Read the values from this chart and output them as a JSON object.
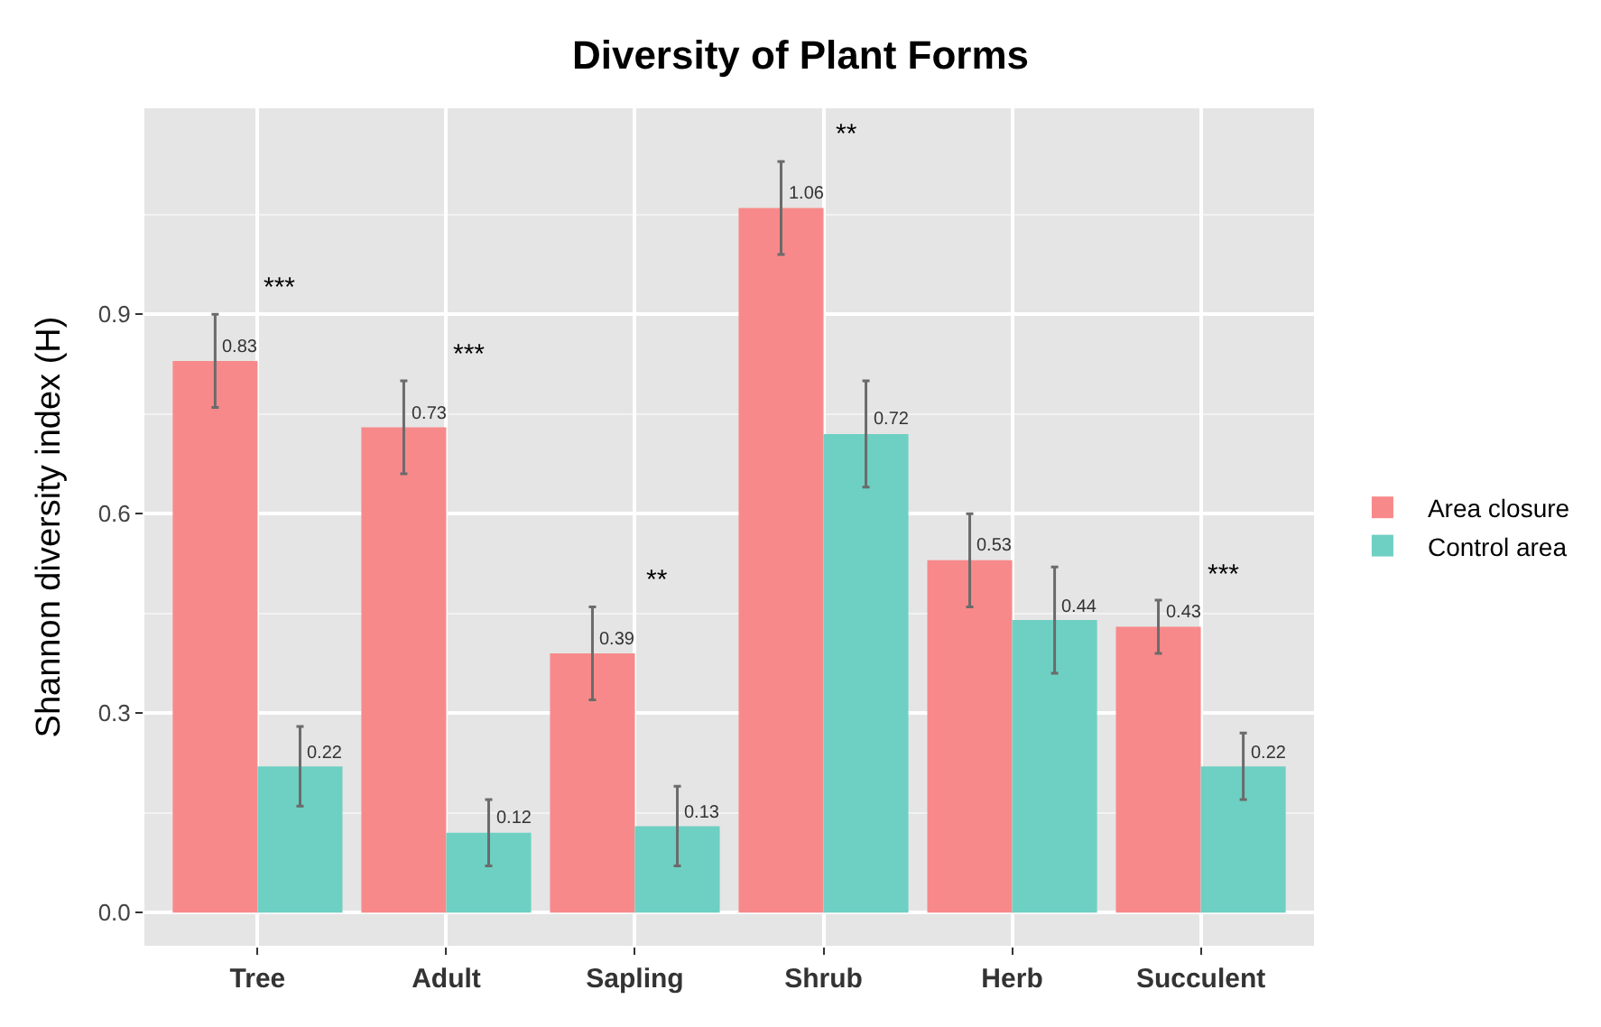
{
  "chart_data": {
    "type": "bar",
    "title": "Diversity of Plant Forms",
    "ylabel": "Shannon diversity index (H)",
    "categories": [
      "Tree",
      "Adult",
      "Sapling",
      "Shrub",
      "Herb",
      "Succulent"
    ],
    "series": [
      {
        "name": "Area closure",
        "color": "#f8898a",
        "values": [
          0.83,
          0.73,
          0.39,
          1.06,
          0.53,
          0.43
        ],
        "errors": [
          0.07,
          0.07,
          0.07,
          0.07,
          0.07,
          0.04
        ]
      },
      {
        "name": "Control area",
        "color": "#6dd0c3",
        "values": [
          0.22,
          0.12,
          0.13,
          0.72,
          0.44,
          0.22
        ],
        "errors": [
          0.06,
          0.05,
          0.06,
          0.08,
          0.08,
          0.05
        ]
      }
    ],
    "data_labels": true,
    "ylim": [
      -0.05,
      1.21
    ],
    "yticks": [
      {
        "value": 0,
        "label": "0.0"
      },
      0.3,
      0.6,
      0.9
    ],
    "grid": true,
    "legend": "right",
    "annotations": [
      "***",
      "***",
      "**",
      "**",
      "***"
    ]
  }
}
